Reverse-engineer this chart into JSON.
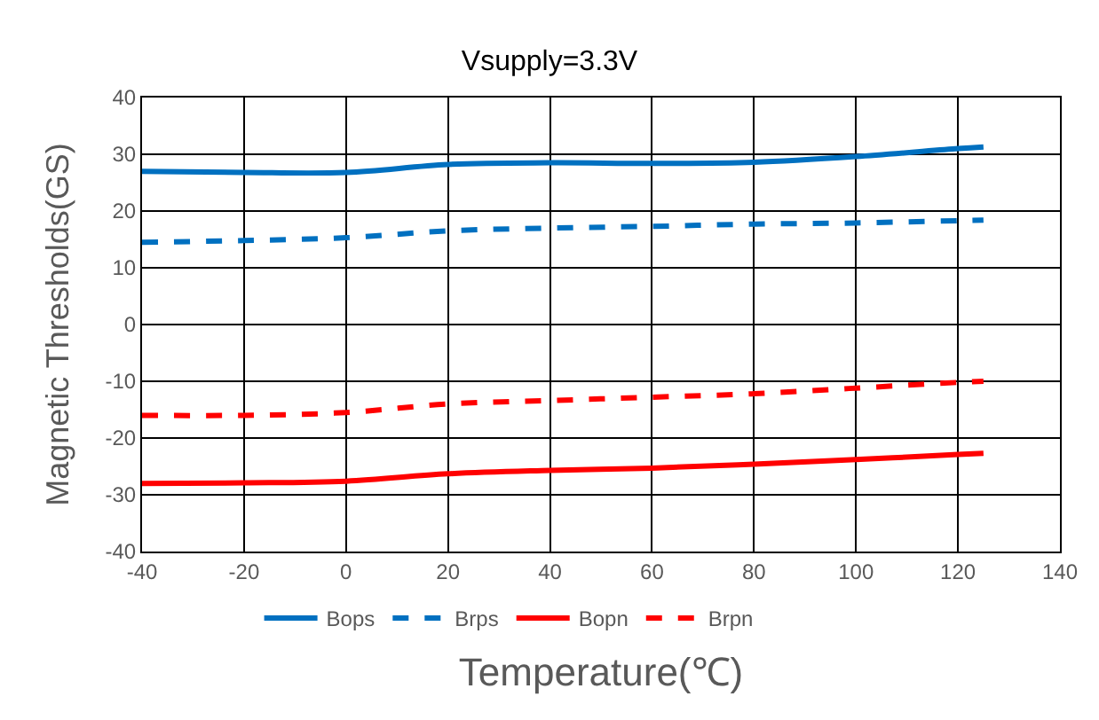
{
  "chart_data": {
    "type": "line",
    "title": "Vsupply=3.3V",
    "xlabel": "Temperature(℃)",
    "ylabel": "Magnetic Thresholds(GS)",
    "x": [
      -40,
      -20,
      0,
      20,
      40,
      60,
      80,
      100,
      120,
      125
    ],
    "series": [
      {
        "name": "Bops",
        "color": "#0070c0",
        "line_style": "solid",
        "values": [
          27,
          26.8,
          26.8,
          28.2,
          28.5,
          28.4,
          28.6,
          29.6,
          31,
          31.3
        ]
      },
      {
        "name": "Brps",
        "color": "#0070c0",
        "line_style": "dashed",
        "values": [
          14.5,
          14.8,
          15.3,
          16.5,
          17,
          17.3,
          17.7,
          17.9,
          18.3,
          18.4
        ]
      },
      {
        "name": "Bopn",
        "color": "#ff0000",
        "line_style": "solid",
        "values": [
          -28,
          -27.9,
          -27.6,
          -26.3,
          -25.7,
          -25.3,
          -24.6,
          -23.8,
          -22.9,
          -22.7
        ]
      },
      {
        "name": "Brpn",
        "color": "#ff0000",
        "line_style": "dashed",
        "values": [
          -16,
          -16,
          -15.5,
          -14,
          -13.4,
          -12.8,
          -12.2,
          -11.2,
          -10.2,
          -10
        ]
      }
    ],
    "xlim": [
      -40,
      140
    ],
    "xticks": [
      -40,
      -20,
      0,
      20,
      40,
      60,
      80,
      100,
      120,
      140
    ],
    "ylim": [
      -40,
      40
    ],
    "yticks": [
      -40,
      -30,
      -20,
      -10,
      0,
      10,
      20,
      30,
      40
    ],
    "grid": true,
    "legend": "bottom",
    "marker": "none"
  }
}
